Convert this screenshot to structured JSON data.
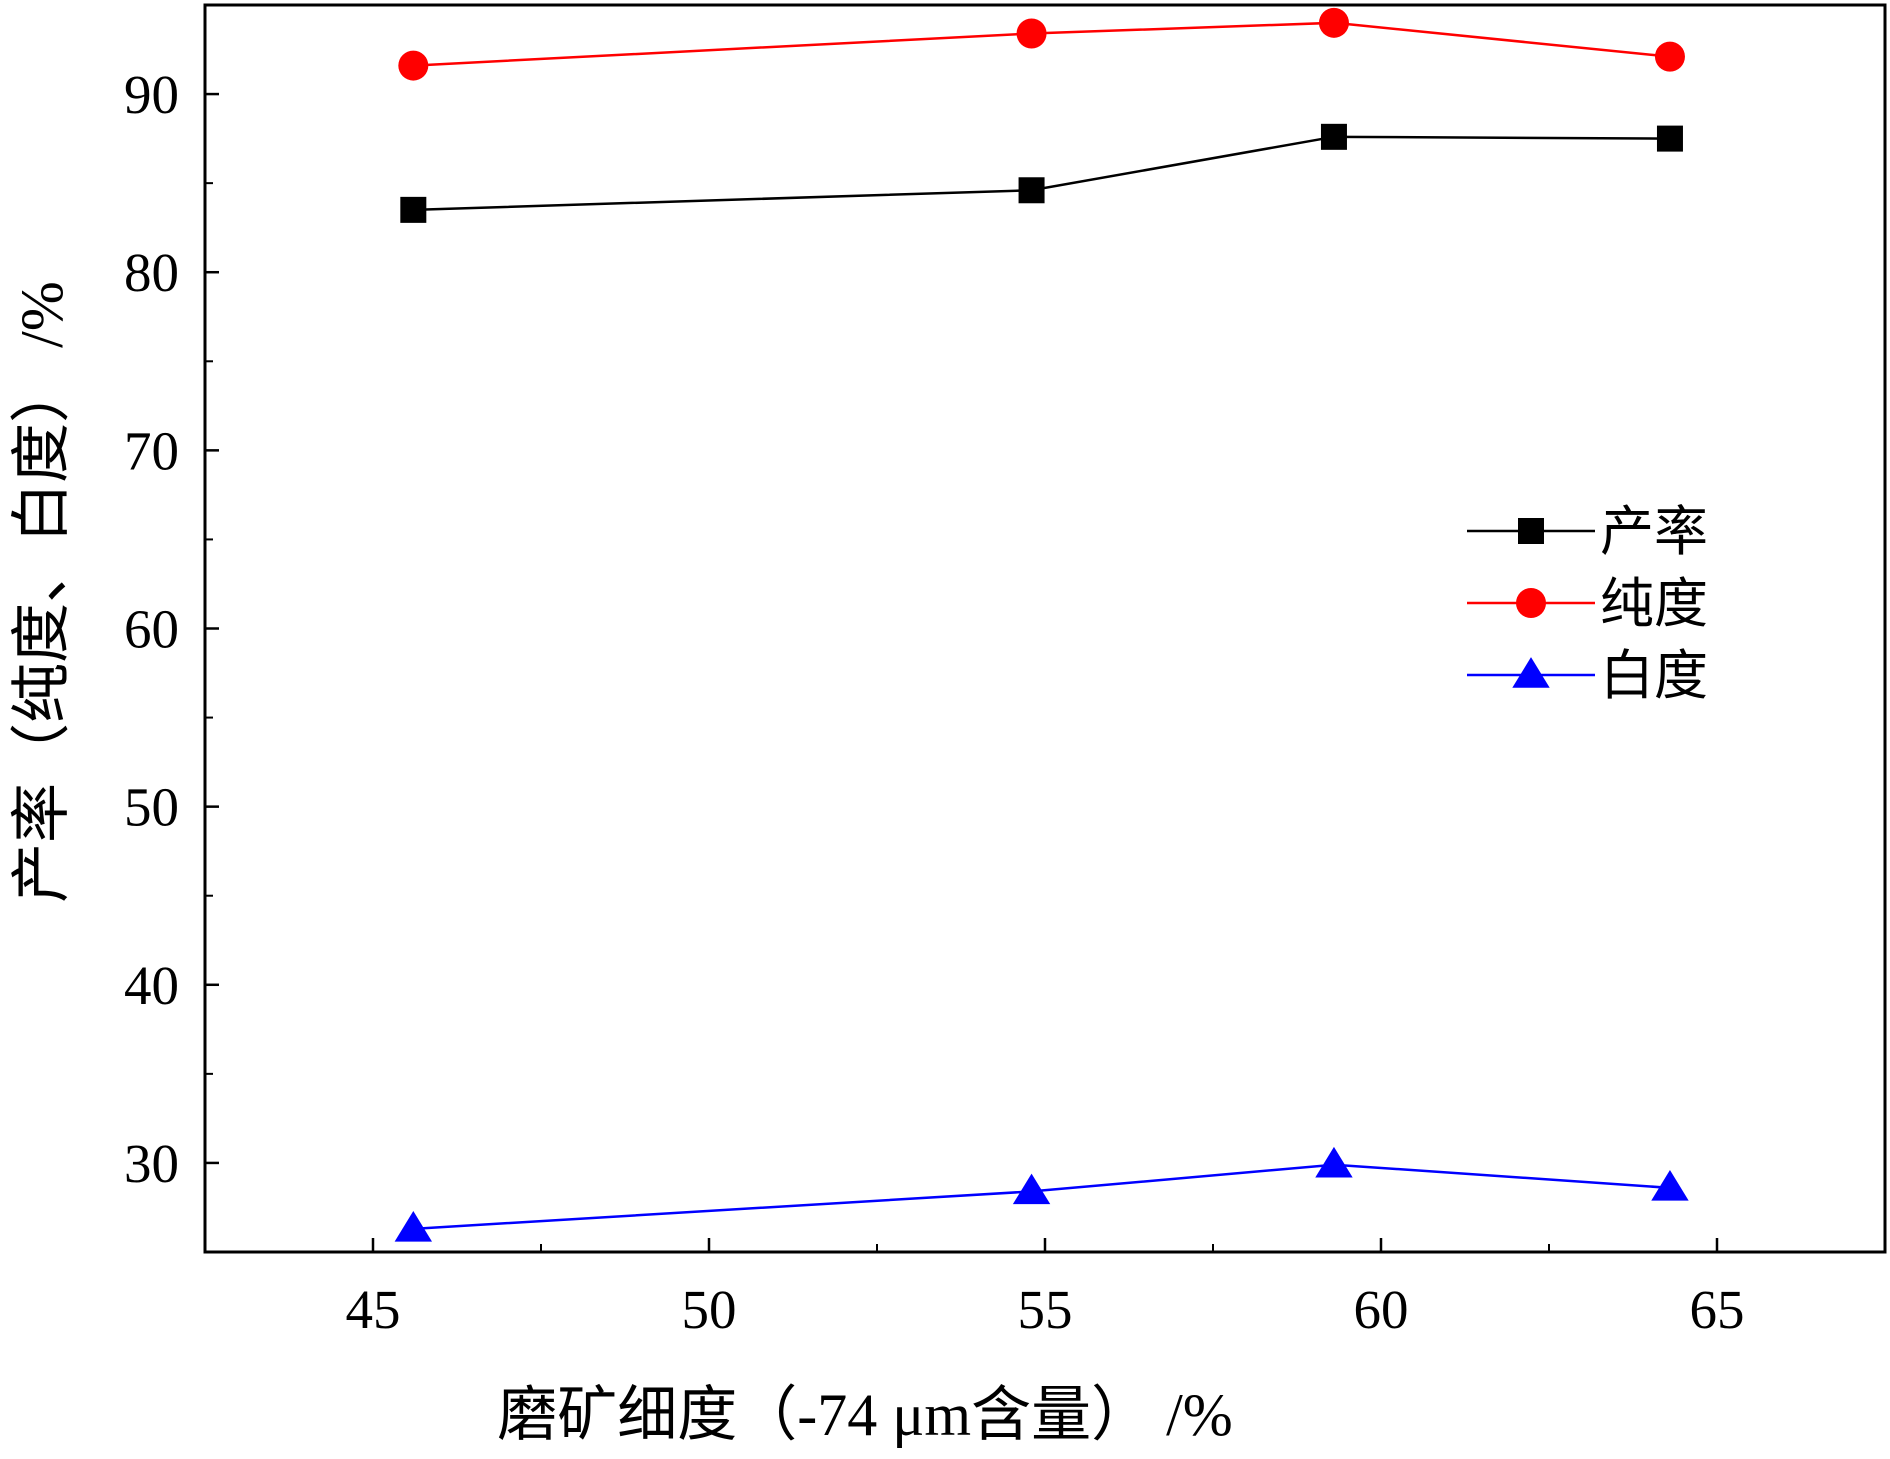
{
  "chart_data": {
    "type": "line",
    "xlabel": "磨矿细度（-74 μm含量） /%",
    "ylabel": "产率（纯度、白度） /%",
    "xlim": [
      42.5,
      67.5
    ],
    "ylim": [
      25,
      95
    ],
    "x_ticks": [
      45,
      50,
      55,
      60,
      65
    ],
    "y_ticks": [
      30,
      40,
      50,
      60,
      70,
      80,
      90
    ],
    "grid": false,
    "legend_position": "right-middle",
    "series": [
      {
        "name": "产率",
        "color": "#000000",
        "marker": "square",
        "x": [
          45.6,
          54.8,
          59.3,
          64.3
        ],
        "y": [
          83.5,
          84.6,
          87.6,
          87.5
        ]
      },
      {
        "name": "纯度",
        "color": "#ff0000",
        "marker": "circle",
        "x": [
          45.6,
          54.8,
          59.3,
          64.3
        ],
        "y": [
          91.6,
          93.4,
          94.0,
          92.1
        ]
      },
      {
        "name": "白度",
        "color": "#0000ff",
        "marker": "triangle",
        "x": [
          45.6,
          54.8,
          59.3,
          64.3
        ],
        "y": [
          26.3,
          28.4,
          29.9,
          28.6
        ]
      }
    ]
  }
}
